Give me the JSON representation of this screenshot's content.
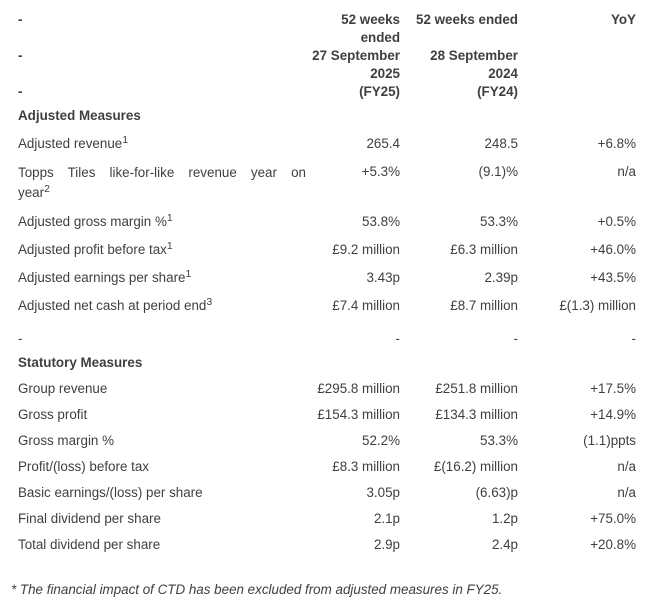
{
  "colors": {
    "text": "#3f3f3f",
    "background": "#ffffff"
  },
  "table": {
    "rows": [
      {
        "type": "header",
        "cells": [
          "-",
          "52 weeks\nended",
          "52 weeks ended",
          "YoY"
        ]
      },
      {
        "type": "header",
        "cells": [
          "-",
          "27 September\n2025",
          "28 September\n2024",
          ""
        ]
      },
      {
        "type": "header",
        "cells": [
          "-",
          "(FY25)",
          "(FY24)",
          ""
        ]
      },
      {
        "type": "section",
        "label": "Adjusted Measures"
      },
      {
        "type": "data",
        "group": "adjusted",
        "label": "Adjusted revenue",
        "sup": "1",
        "values": [
          "265.4",
          "248.5",
          "+6.8%"
        ]
      },
      {
        "type": "data",
        "group": "adjusted",
        "label_lines": [
          "Topps Tiles like-for-like revenue year on",
          "year"
        ],
        "sup": "2",
        "values": [
          "+5.3%",
          "(9.1)%",
          "n/a"
        ]
      },
      {
        "type": "data",
        "group": "adjusted",
        "label": "Adjusted gross margin %",
        "sup": "1",
        "values": [
          "53.8%",
          "53.3%",
          "+0.5%"
        ]
      },
      {
        "type": "data",
        "group": "adjusted",
        "label": "Adjusted profit before tax",
        "sup": "1",
        "values": [
          "£9.2 million",
          "£6.3 million",
          "+46.0%"
        ]
      },
      {
        "type": "data",
        "group": "adjusted",
        "label": "Adjusted earnings per share",
        "sup": "1",
        "values": [
          "3.43p",
          "2.39p",
          "+43.5%"
        ]
      },
      {
        "type": "data",
        "group": "adjusted",
        "label": "Adjusted net cash at period end",
        "sup": "3",
        "values": [
          "£7.4 million",
          "£8.7 million",
          "£(1.3) million"
        ]
      },
      {
        "type": "divider",
        "cells": [
          "-",
          "-",
          "-",
          "-"
        ]
      },
      {
        "type": "section",
        "label": "Statutory Measures"
      },
      {
        "type": "data",
        "group": "statutory",
        "label": "Group revenue",
        "values": [
          "£295.8 million",
          "£251.8 million",
          "+17.5%"
        ]
      },
      {
        "type": "data",
        "group": "statutory",
        "label": "Gross profit",
        "values": [
          "£154.3 million",
          "£134.3 million",
          "+14.9%"
        ]
      },
      {
        "type": "data",
        "group": "statutory",
        "label": "Gross margin %",
        "values": [
          "52.2%",
          "53.3%",
          "(1.1)ppts"
        ]
      },
      {
        "type": "data",
        "group": "statutory",
        "label": "Profit/(loss) before tax",
        "values": [
          "£8.3 million",
          "£(16.2) million",
          "n/a"
        ]
      },
      {
        "type": "data",
        "group": "statutory",
        "label": "Basic earnings/(loss) per share",
        "values": [
          "3.05p",
          "(6.63)p",
          "n/a"
        ]
      },
      {
        "type": "data",
        "group": "statutory",
        "label": "Final dividend per share",
        "values": [
          "2.1p",
          "1.2p",
          "+75.0%"
        ]
      },
      {
        "type": "data",
        "group": "statutory",
        "label": "Total dividend per share",
        "values": [
          "2.9p",
          "2.4p",
          "+20.8%"
        ]
      }
    ],
    "footnote": "* The financial impact of CTD has been excluded from adjusted measures in FY25."
  }
}
